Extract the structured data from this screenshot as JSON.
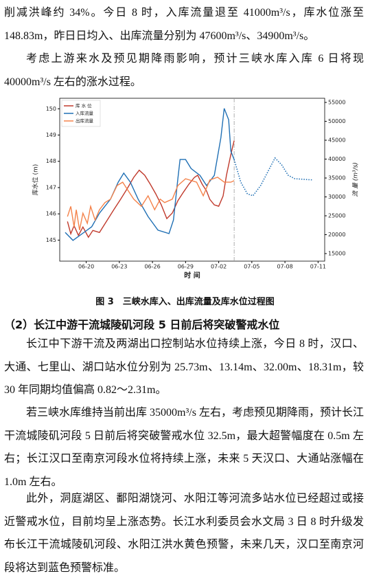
{
  "paragraphs": [
    "削减洪峰约 34%。今日 8 时，入库流量退至 41000m³/s，库水位涨至 148.83m，昨日日均入、出库流量分别为 47600m³/s、34900m³/s。",
    "考虑上游来水及预见期降雨影响，预计三峡水库入库 6 日将现 40000m³/s 左右的涨水过程。"
  ],
  "caption": "图 3　三峡水库入、出库流量及库水位过程图",
  "section": {
    "heading": "（2）长江中游干流城陵矶河段 5 日前后将突破警戒水位",
    "paragraphs": [
      "长江中下游干流及两湖出口控制站水位持续上涨，今日 8 时，汉口、大通、七里山、湖口站水位分别为 25.73m、13.14m、32.00m、18.31m，较 30 年同期均值偏高 0.82～2.31m。",
      "若三峡水库维持当前出库 35000m³/s 左右，考虑预见期降雨，预计长江干流城陵矶河段 5 日前后将突破警戒水位 32.5m，最大超警幅度在 0.5m 左右；长江汉口至南京河段水位将持续上涨，未来 5 天汉口、大通站涨幅在 1.0m 左右。",
      "此外，洞庭湖区、鄱阳湖饶河、水阳江等河流多站水位已经超过或接近警戒水位，目前均呈上涨态势。长江水利委员会水文局 3 日 8 时升级发布长江干流城陵矶河段、水阳江洪水黄色预警，未来几天，汉口至南京河段将达到蓝色预警标准。"
    ]
  },
  "chart_data": {
    "type": "line",
    "x_label": "时 间",
    "y_label": "库水位 (m)",
    "y2_label": "流 量 (m³/s)",
    "xlim": [
      17.6,
      41.6
    ],
    "xticks": [
      {
        "value": 20,
        "label": "06-20"
      },
      {
        "value": 23,
        "label": "06-23"
      },
      {
        "value": 26,
        "label": "06-26"
      },
      {
        "value": 29,
        "label": "06-29"
      },
      {
        "value": 32,
        "label": "07-02"
      },
      {
        "value": 35,
        "label": "07-05"
      },
      {
        "value": 38,
        "label": "07-08"
      },
      {
        "value": 41,
        "label": "07-11"
      }
    ],
    "ylim": [
      144.2,
      150.4
    ],
    "yticks": [
      145,
      146,
      147,
      148,
      149,
      150
    ],
    "y2lim": [
      13000,
      56100
    ],
    "y2ticks": [
      15000,
      20000,
      25000,
      30000,
      35000,
      40000,
      45000,
      50000,
      55000
    ],
    "legend": "upper-left",
    "forecast_line": 33.4,
    "series": [
      {
        "name": "库 水 位",
        "color": "#c0392b",
        "x": [
          18.3,
          18.6,
          18.9,
          19.3,
          19.7,
          20.2,
          20.6,
          21.2,
          21.9,
          22.5,
          23.1,
          23.7,
          24.3,
          24.8,
          25.3,
          25.8,
          26.3,
          26.8,
          27.3,
          27.8,
          28.3,
          28.8,
          29.3,
          29.8,
          30.1,
          30.5,
          30.9,
          31.2,
          31.6,
          32.0,
          32.4,
          32.7,
          33.1,
          33.4
        ],
        "values": [
          145.71,
          145.24,
          145.55,
          145.18,
          145.5,
          145.11,
          145.37,
          145.29,
          145.76,
          146.16,
          146.55,
          146.95,
          147.39,
          147.66,
          147.47,
          147.13,
          146.76,
          146.34,
          145.82,
          146.03,
          146.5,
          146.82,
          147.13,
          147.39,
          147.47,
          147.13,
          146.87,
          146.55,
          146.34,
          146.29,
          146.68,
          147.47,
          148.26,
          148.79
        ]
      },
      {
        "name": "入库流量",
        "color": "#1f6fb4",
        "axis": "y2",
        "x": [
          18.1,
          18.8,
          20.5,
          21.2,
          22.2,
          22.9,
          23.4,
          24.0,
          24.7,
          25.6,
          26.5,
          27.5,
          27.9,
          28.3,
          28.5,
          29.0,
          29.5,
          30.3,
          30.9,
          31.6,
          32.2,
          32.5,
          32.9,
          33.1,
          33.4
        ],
        "values": [
          20600,
          18500,
          22100,
          25700,
          29400,
          33900,
          36300,
          33900,
          29400,
          24800,
          21200,
          20300,
          23900,
          34800,
          39900,
          39900,
          37500,
          35700,
          33000,
          35700,
          45700,
          53400,
          50400,
          42100,
          39900
        ]
      },
      {
        "name": "出库流量",
        "color": "#f4824a",
        "axis": "y2",
        "x": [
          18.3,
          18.6,
          18.9,
          19.1,
          19.4,
          19.7,
          20.1,
          20.4,
          20.8,
          21.2,
          21.7,
          22.2,
          22.8,
          23.3,
          23.7,
          24.3,
          25.0,
          25.6,
          26.2,
          26.7,
          27.1,
          27.8,
          28.3,
          29.0,
          30.0,
          30.6,
          31.2,
          31.9,
          32.5,
          33.1,
          33.4
        ],
        "values": [
          24800,
          27500,
          22100,
          26600,
          21200,
          25700,
          23000,
          27500,
          23900,
          26600,
          28500,
          29400,
          33000,
          33900,
          32100,
          29400,
          27500,
          30300,
          26600,
          29400,
          28500,
          29400,
          33000,
          34800,
          33900,
          30300,
          34500,
          35200,
          33900,
          33900,
          34300
        ]
      },
      {
        "color": "#1f6fb4",
        "axis": "y2",
        "style": "dotted",
        "x": [
          33.4,
          34.0,
          34.6,
          35.1,
          35.8,
          36.6,
          37.1,
          37.7,
          38.3,
          38.9,
          40.5
        ],
        "values": [
          39900,
          33900,
          30800,
          30300,
          33000,
          37500,
          40300,
          38500,
          35700,
          34800,
          34500
        ]
      }
    ]
  }
}
